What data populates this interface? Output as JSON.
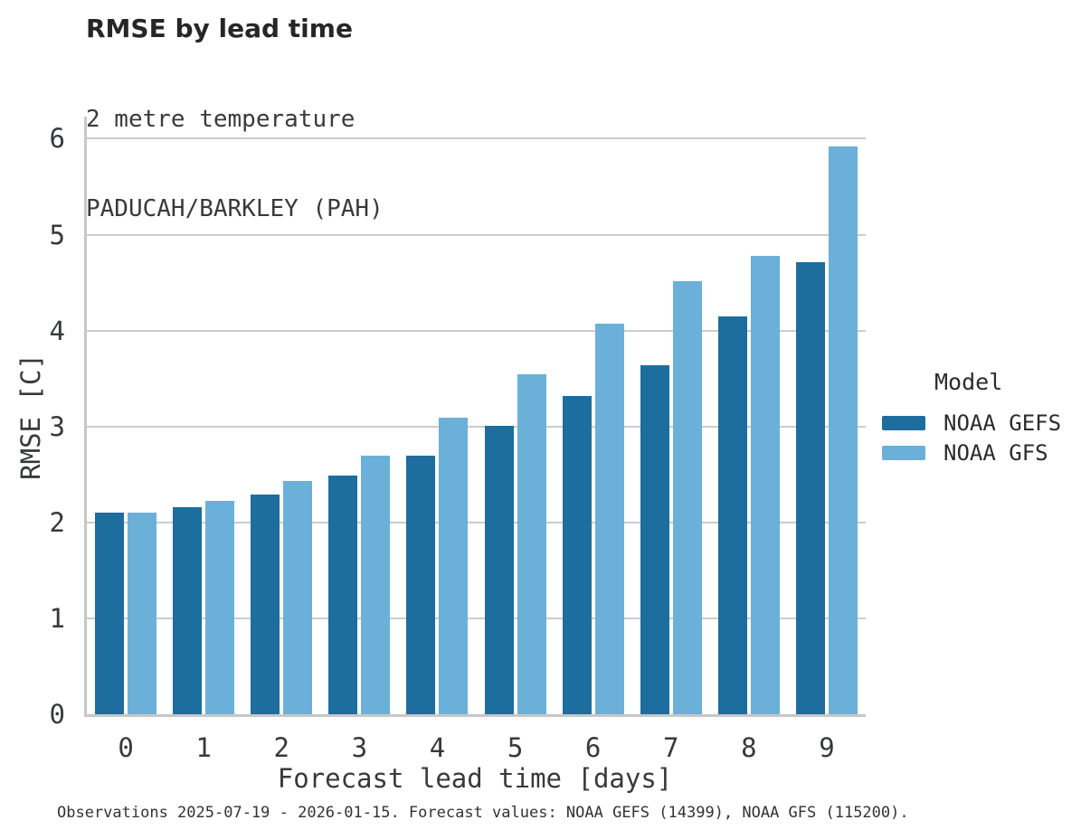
{
  "chart_data": {
    "type": "bar",
    "title": "RMSE by lead time",
    "subtitle": [
      "2 metre temperature",
      "PADUCAH/BARKLEY (PAH)"
    ],
    "categories": [
      "0",
      "1",
      "2",
      "3",
      "4",
      "5",
      "6",
      "7",
      "8",
      "9"
    ],
    "series": [
      {
        "name": "NOAA GEFS",
        "color": "#1d6d9e",
        "values": [
          2.1,
          2.16,
          2.29,
          2.49,
          2.7,
          3.01,
          3.32,
          3.64,
          4.15,
          4.71
        ]
      },
      {
        "name": "NOAA GFS",
        "color": "#6bb0d8",
        "values": [
          2.1,
          2.22,
          2.43,
          2.7,
          3.09,
          3.54,
          4.07,
          4.51,
          4.78,
          5.92
        ]
      }
    ],
    "xlabel": "Forecast lead time [days]",
    "ylabel": "RMSE [C]",
    "ylim": [
      0,
      6.23
    ],
    "yticks": [
      0,
      1,
      2,
      3,
      4,
      5,
      6
    ],
    "grid": true,
    "grid_color": "#cccccc",
    "axis_color": "#c7c7c7",
    "legend_position": "right",
    "legend_title": "Model"
  },
  "footer": {
    "caption": "Observations 2025-07-19 - 2026-01-15. Forecast values: NOAA GEFS (14399), NOAA GFS (115200)."
  }
}
